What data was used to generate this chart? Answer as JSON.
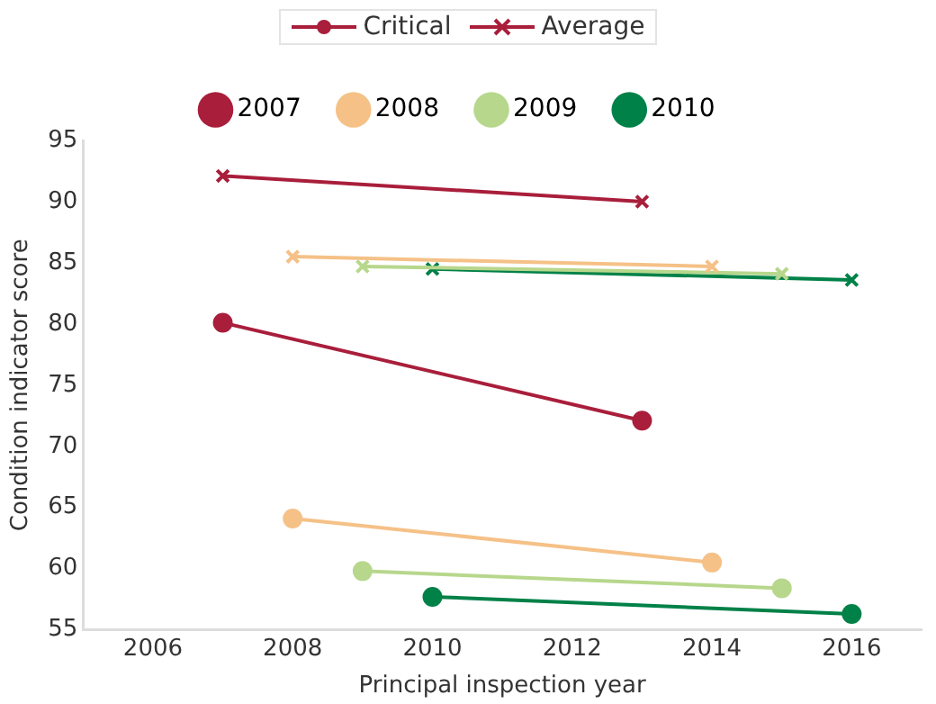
{
  "chart_data": {
    "type": "line",
    "xlabel": "Principal inspection year",
    "ylabel": "Condition indicator score",
    "xlim": [
      2005,
      2017
    ],
    "xticks": [
      2006,
      2008,
      2010,
      2012,
      2014,
      2016
    ],
    "ylim": [
      55,
      95
    ],
    "yticks": [
      55,
      60,
      65,
      70,
      75,
      80,
      85,
      90,
      95
    ],
    "grid": false,
    "legend": "top",
    "annotations": [
      "Critical",
      "Average"
    ],
    "series": [
      {
        "name": "2007",
        "color": "#a91e3b",
        "marker": "circle",
        "x": [
          2007,
          2013
        ],
        "values": [
          80.1,
          72.1
        ]
      },
      {
        "name": "2008",
        "color": "#f5c187",
        "marker": "circle",
        "x": [
          2008,
          2014
        ],
        "values": [
          64.1,
          60.5
        ]
      },
      {
        "name": "2009",
        "color": "#b7d78c",
        "marker": "circle",
        "x": [
          2009,
          2015
        ],
        "values": [
          59.8,
          58.4
        ]
      },
      {
        "name": "2010",
        "color": "#008148",
        "marker": "circle",
        "x": [
          2010,
          2016
        ],
        "values": [
          57.7,
          56.3
        ]
      },
      {
        "color": "#a91e3b",
        "marker": "cross",
        "x": [
          2007,
          2013
        ],
        "values": [
          92.1,
          90.0
        ]
      },
      {
        "color": "#f5c187",
        "marker": "cross",
        "x": [
          2008,
          2014
        ],
        "values": [
          85.5,
          84.7
        ]
      },
      {
        "color": "#b7d78c",
        "marker": "cross",
        "x": [
          2009,
          2015
        ],
        "values": [
          84.7,
          84.1
        ]
      },
      {
        "color": "#008148",
        "marker": "cross",
        "x": [
          2010,
          2016
        ],
        "values": [
          84.5,
          83.6
        ]
      }
    ]
  }
}
